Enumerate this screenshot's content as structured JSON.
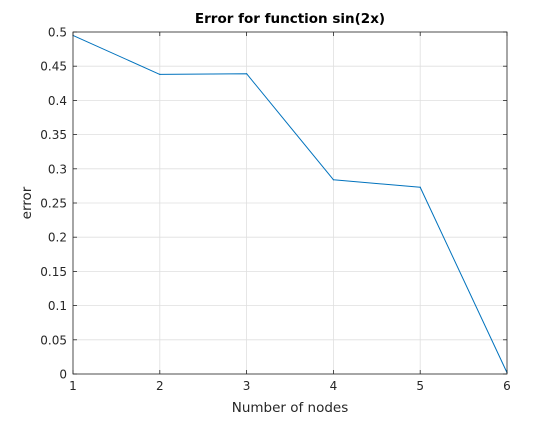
{
  "chart_data": {
    "type": "line",
    "title": "Error for function sin(2x)",
    "xlabel": "Number of nodes",
    "ylabel": "error",
    "xlim": [
      1,
      6
    ],
    "ylim": [
      0,
      0.5
    ],
    "xticks": [
      1,
      2,
      3,
      4,
      5,
      6
    ],
    "xtick_labels": [
      "1",
      "2",
      "3",
      "4",
      "5",
      "6"
    ],
    "yticks": [
      0,
      0.05,
      0.1,
      0.15,
      0.2,
      0.25,
      0.3,
      0.35,
      0.4,
      0.45,
      0.5
    ],
    "ytick_labels": [
      "0",
      "0.05",
      "0.1",
      "0.15",
      "0.2",
      "0.25",
      "0.3",
      "0.35",
      "0.4",
      "0.45",
      "0.5"
    ],
    "grid": true,
    "legend": false,
    "series": [
      {
        "x": [
          1,
          2,
          3,
          4,
          5,
          6
        ],
        "y": [
          0.495,
          0.438,
          0.439,
          0.284,
          0.273,
          0.002
        ],
        "color": "#0072BD"
      }
    ]
  }
}
